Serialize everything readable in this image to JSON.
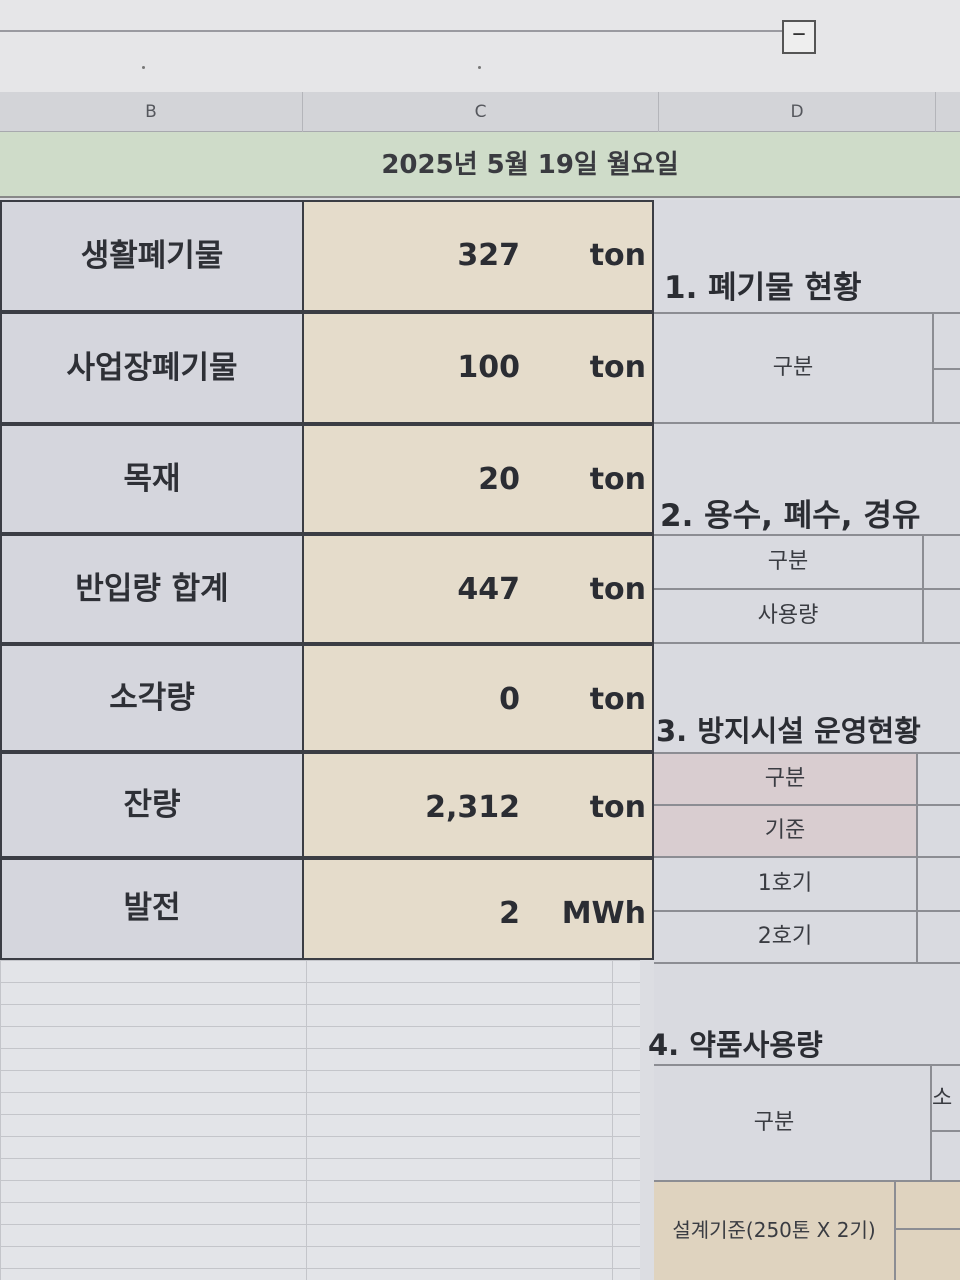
{
  "toolbar": {
    "collapse_label": "−"
  },
  "columns": [
    "B",
    "C",
    "D"
  ],
  "date": "2025년 5월 19일 월요일",
  "rows": [
    {
      "label": "생활폐기물",
      "value": "327",
      "unit": "ton"
    },
    {
      "label": "사업장폐기물",
      "value": "100",
      "unit": "ton"
    },
    {
      "label": "목재",
      "value": "20",
      "unit": "ton"
    },
    {
      "label": "반입량 합계",
      "value": "447",
      "unit": "ton"
    },
    {
      "label": "소각량",
      "value": "0",
      "unit": "ton"
    },
    {
      "label": "잔량",
      "value": "2,312",
      "unit": "ton"
    },
    {
      "label": "발전",
      "value": "2",
      "unit": "MWh"
    }
  ],
  "right": {
    "s1_title": "1. 폐기물 현황",
    "s1_cell": "구분",
    "s2_title": "2. 용수, 폐수, 경유",
    "s2_cells": [
      "구분",
      "사용량"
    ],
    "s3_title": "3. 방지시설 운영현황",
    "s3_cells": [
      "구분",
      "기준",
      "1호기",
      "2호기"
    ],
    "s4_title": "4. 약품사용량",
    "s4_cell": "구분",
    "s4_partial": "소",
    "s4_design": "설계기준(250톤 X 2기)"
  }
}
